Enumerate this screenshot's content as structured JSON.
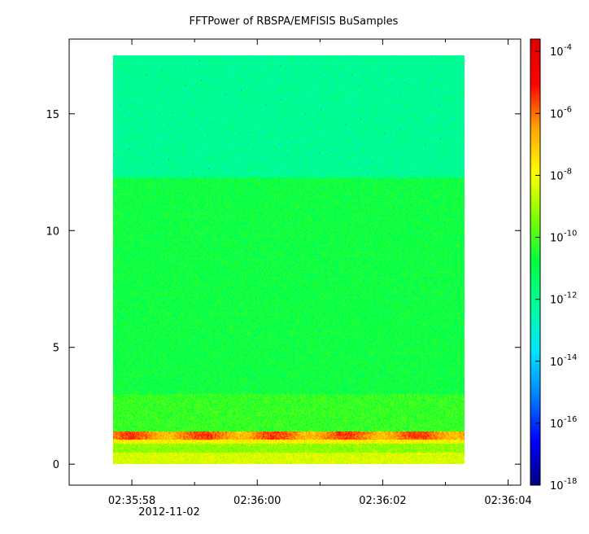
{
  "chart_data": {
    "type": "heatmap",
    "title": "FFTPower of RBSPA/EMFISIS  BuSamples",
    "xlabel": "",
    "ylabel": "",
    "x_axis": {
      "range": [
        "02:35:57.000",
        "02:36:04.200"
      ],
      "tick_labels": [
        "02:35:58",
        "02:36:00",
        "02:36:02",
        "02:36:04"
      ],
      "tick_values_seconds": [
        58,
        60,
        62,
        64
      ],
      "minor_tick_values_seconds": [
        57,
        59,
        61,
        63
      ],
      "date_label": "2012-11-02"
    },
    "y_axis": {
      "range": [
        -0.9,
        18.2
      ],
      "tick_values": [
        0,
        5,
        10,
        15
      ],
      "tick_labels": [
        "0",
        "5",
        "10",
        "15"
      ]
    },
    "data_extent": {
      "x_start": "02:35:57.700",
      "x_end": "02:36:03.300",
      "y_start": 0,
      "y_end": 17.5
    },
    "bands": [
      {
        "y_from": 0.0,
        "y_to": 0.5,
        "log10_power": -8.3
      },
      {
        "y_from": 0.5,
        "y_to": 0.9,
        "log10_power": -9.2
      },
      {
        "y_from": 0.9,
        "y_to": 1.05,
        "log10_power": -7.8
      },
      {
        "y_from": 1.05,
        "y_to": 1.4,
        "log10_power": -6.2
      },
      {
        "y_from": 1.4,
        "y_to": 3.0,
        "log10_power": -10.2
      },
      {
        "y_from": 3.0,
        "y_to": 12.3,
        "log10_power": -10.8
      },
      {
        "y_from": 12.3,
        "y_to": 17.5,
        "log10_power": -12.1
      }
    ],
    "colorbar": {
      "scale": "log",
      "range_exponent": [
        -18,
        -3.6
      ],
      "tick_base": "10",
      "tick_exponents": [
        "-18",
        "-16",
        "-14",
        "-12",
        "-10",
        "-8",
        "-6",
        "-4"
      ],
      "tick_exponent_values": [
        -18,
        -16,
        -14,
        -12,
        -10,
        -8,
        -6,
        -4
      ],
      "colormap": [
        "#00007f",
        "#0000ff",
        "#0080ff",
        "#00e5ff",
        "#00ff9c",
        "#00ff40",
        "#7fff00",
        "#ffff00",
        "#ffa500",
        "#ff0000",
        "#e00000"
      ]
    },
    "grid": false,
    "legend": "none"
  }
}
